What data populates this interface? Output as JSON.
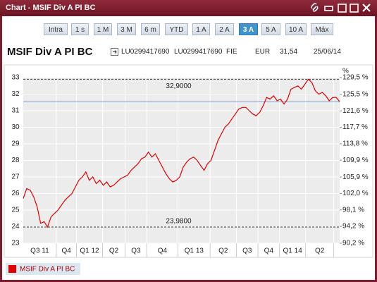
{
  "window": {
    "title": "Chart - MSIF Div A PI BC"
  },
  "toolbar": {
    "buttons": [
      "Intra",
      "1 s",
      "1 M",
      "3 M",
      "6 m",
      "YTD",
      "1 A",
      "2 A",
      "3 A",
      "5 A",
      "10 A",
      "Máx"
    ],
    "selected": "3 A"
  },
  "info": {
    "name": "MSIF Div A PI BC",
    "isin": "LU0299417690",
    "code": "LU0299417690",
    "kind": "FIE",
    "currency": "EUR",
    "price": "31,54",
    "date": "25/06/14"
  },
  "chart_data": {
    "type": "line",
    "series": [
      {
        "name": "MSIF Div A PI BC",
        "color": "#e00000",
        "values": [
          25.7,
          26.3,
          26.2,
          25.8,
          25.2,
          24.2,
          24.3,
          23.98,
          24.6,
          24.8,
          25.0,
          25.3,
          25.6,
          25.8,
          26.0,
          26.4,
          26.8,
          27.0,
          27.3,
          26.8,
          27.0,
          26.6,
          26.8,
          26.5,
          26.7,
          26.4,
          26.5,
          26.7,
          26.9,
          27.0,
          27.1,
          27.4,
          27.6,
          27.8,
          28.1,
          28.2,
          28.5,
          28.2,
          28.4,
          28.0,
          27.6,
          27.2,
          26.9,
          26.7,
          26.8,
          27.0,
          27.6,
          27.9,
          28.1,
          28.2,
          28.0,
          27.7,
          27.4,
          27.8,
          28.0,
          28.6,
          29.2,
          29.6,
          30.0,
          30.2,
          30.5,
          30.8,
          31.1,
          31.2,
          31.2,
          31.0,
          30.8,
          30.7,
          30.9,
          31.3,
          31.8,
          31.7,
          31.9,
          31.6,
          31.7,
          31.4,
          31.7,
          32.3,
          32.4,
          32.5,
          32.3,
          32.6,
          32.9,
          32.7,
          32.2,
          32.0,
          32.1,
          31.9,
          31.6,
          31.8,
          31.8,
          31.54
        ]
      }
    ],
    "ylim": [
      23,
      33
    ],
    "yticks": [
      23,
      24,
      25,
      26,
      27,
      28,
      29,
      30,
      31,
      32,
      33
    ],
    "y2lim": [
      90.2,
      129.5
    ],
    "y2label": "%",
    "y2ticks": [
      {
        "value": 90.2,
        "label": "90,2 %"
      },
      {
        "value": 94.2,
        "label": "94,2 %"
      },
      {
        "value": 98.1,
        "label": "98,1 %"
      },
      {
        "value": 102.0,
        "label": "102,0 %"
      },
      {
        "value": 105.9,
        "label": "105,9 %"
      },
      {
        "value": 109.9,
        "label": "109,9 %"
      },
      {
        "value": 113.8,
        "label": "113,8 %"
      },
      {
        "value": 117.7,
        "label": "117,7 %"
      },
      {
        "value": 121.6,
        "label": "121,6 %"
      },
      {
        "value": 125.5,
        "label": "125,5 %"
      },
      {
        "value": 129.5,
        "label": "129,5 %"
      }
    ],
    "xlim": [
      0,
      91
    ],
    "xticks": [
      {
        "value": 9.5,
        "label": "Q3 11"
      },
      {
        "value": 15.3,
        "label": "Q4"
      },
      {
        "value": 22.8,
        "label": "Q1 12"
      },
      {
        "value": 29.3,
        "label": "Q2"
      },
      {
        "value": 35.5,
        "label": "Q3"
      },
      {
        "value": 44.5,
        "label": "Q4"
      },
      {
        "value": 53.75,
        "label": "Q1 13"
      },
      {
        "value": 61.3,
        "label": "Q2"
      },
      {
        "value": 67.5,
        "label": "Q3"
      },
      {
        "value": 73.7,
        "label": "Q4"
      },
      {
        "value": 81.2,
        "label": "Q1 14"
      },
      {
        "value": 89.3,
        "label": "Q2"
      }
    ],
    "hlines": [
      {
        "value": 32.9,
        "label": "32,9000"
      },
      {
        "value": 23.98,
        "label": "23,9800"
      }
    ],
    "reference_line": 31.54,
    "grid": true
  }
}
